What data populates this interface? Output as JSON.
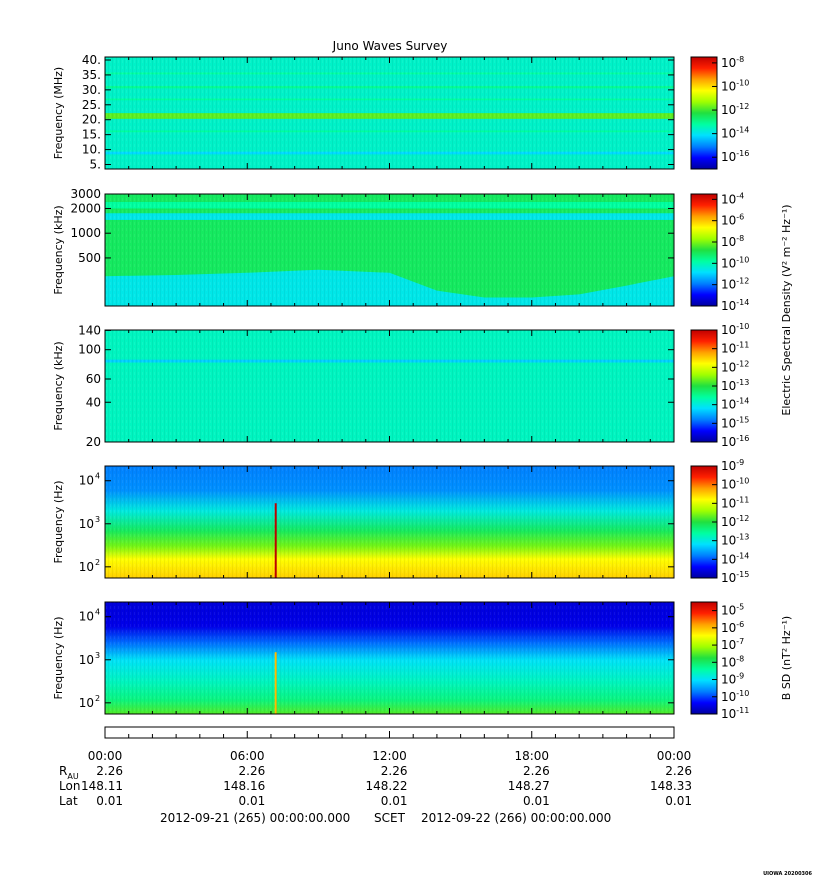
{
  "title": "Juno Waves Survey",
  "credit": "UIOWA 20200306",
  "colorbar_labels": {
    "electric": "Electric Spectral Density (V² m⁻² Hz⁻¹)",
    "magnetic": "B SD (nT² Hz⁻¹)"
  },
  "colors": {
    "background": "#ffffff",
    "colormap": [
      "#0000a0",
      "#0000ff",
      "#0080ff",
      "#00e0ff",
      "#00ffa0",
      "#20e040",
      "#a0ff00",
      "#ffff00",
      "#ffa000",
      "#ff2000",
      "#c00000"
    ]
  },
  "time_axis": {
    "tick_labels": [
      "00:00",
      "06:00",
      "12:00",
      "18:00",
      "00:00"
    ],
    "rows": [
      {
        "label": "R",
        "sub": "AU",
        "values": [
          "2.26",
          "2.26",
          "2.26",
          "2.26",
          "2.26"
        ]
      },
      {
        "label": "Lon",
        "sub": "",
        "values": [
          "148.11",
          "148.16",
          "148.22",
          "148.27",
          "148.33"
        ]
      },
      {
        "label": "Lat",
        "sub": "",
        "values": [
          "0.01",
          "0.01",
          "0.01",
          "0.01",
          "0.01"
        ]
      }
    ],
    "start": "2012-09-21 (265) 00:00:00.000",
    "scet": "SCET",
    "end": "2012-09-22 (266) 00:00:00.000"
  },
  "chart_data": [
    {
      "type": "heatmap",
      "title": "Juno Waves Survey",
      "ylabel": "Frequency (MHz)",
      "yscale": "linear",
      "ylim": [
        3.5,
        41
      ],
      "y_ticks": [
        {
          "v": 5,
          "t": "5."
        },
        {
          "v": 10,
          "t": "10."
        },
        {
          "v": 15,
          "t": "15."
        },
        {
          "v": 20,
          "t": "20."
        },
        {
          "v": 25,
          "t": "25."
        },
        {
          "v": 30,
          "t": "30."
        },
        {
          "v": 35,
          "t": "35."
        },
        {
          "v": 40,
          "t": "40."
        }
      ],
      "x": [
        "00:00",
        "06:00",
        "12:00",
        "18:00",
        "00:00"
      ],
      "colorbar": {
        "min_exp": -17,
        "max_exp": -7.5,
        "ticks": [
          -8,
          -10,
          -12,
          -14,
          -16
        ]
      },
      "features": [
        {
          "kind": "background",
          "y": [
            3.5,
            41
          ],
          "level": -13.6
        },
        {
          "kind": "band",
          "y": [
            20.3,
            22.2
          ],
          "level": -11.8
        },
        {
          "kind": "band",
          "y": [
            8.4,
            9.3
          ],
          "level": -14.2
        },
        {
          "kind": "band",
          "y": [
            30.5,
            31.3
          ],
          "level": -13.1
        },
        {
          "kind": "band",
          "y": [
            26.5,
            27.1
          ],
          "level": -13.2
        },
        {
          "kind": "band",
          "y": [
            35.2,
            35.8
          ],
          "level": -13.2
        },
        {
          "kind": "band",
          "y": [
            15.8,
            16.4
          ],
          "level": -13.2
        }
      ]
    },
    {
      "type": "heatmap",
      "ylabel": "Frequency (kHz)",
      "yscale": "log",
      "ylim": [
        130,
        3000
      ],
      "y_ticks": [
        {
          "v": 500,
          "t": "500"
        },
        {
          "v": 1000,
          "t": "1000"
        },
        {
          "v": 2000,
          "t": "2000"
        },
        {
          "v": 3000,
          "t": "3000"
        }
      ],
      "x": [
        "00:00",
        "06:00",
        "12:00",
        "18:00",
        "00:00"
      ],
      "colorbar": {
        "min_exp": -14,
        "max_exp": -3.5,
        "ticks": [
          -4,
          -6,
          -8,
          -10,
          -12,
          -14
        ]
      },
      "features": [
        {
          "kind": "background",
          "y": [
            130,
            3000
          ],
          "level": -9.1
        },
        {
          "kind": "band",
          "y": [
            1450,
            1750
          ],
          "level": -10.6
        },
        {
          "kind": "band",
          "y": [
            2000,
            2400
          ],
          "level": -9.8
        },
        {
          "kind": "emission",
          "level": -10.6,
          "base": 130,
          "upper_t": [
            0,
            3,
            6,
            9,
            12,
            14,
            16,
            18,
            20,
            22,
            24
          ],
          "upper_f": [
            300,
            310,
            330,
            360,
            330,
            200,
            165,
            165,
            180,
            230,
            300
          ]
        }
      ]
    },
    {
      "type": "heatmap",
      "ylabel": "Frequency (kHz)",
      "yscale": "log",
      "ylim": [
        20,
        141
      ],
      "y_ticks": [
        {
          "v": 20,
          "t": "20"
        },
        {
          "v": 40,
          "t": "40"
        },
        {
          "v": 60,
          "t": "60"
        },
        {
          "v": 100,
          "t": "100"
        },
        {
          "v": 140,
          "t": "140"
        }
      ],
      "x": [
        "00:00",
        "06:00",
        "12:00",
        "18:00",
        "00:00"
      ],
      "colorbar": {
        "min_exp": -16,
        "max_exp": -10,
        "ticks": [
          -10,
          -11,
          -12,
          -13,
          -14,
          -15,
          -16
        ]
      },
      "features": [
        {
          "kind": "background",
          "y": [
            20,
            141
          ],
          "level": -13.8
        },
        {
          "kind": "band",
          "y": [
            80,
            84
          ],
          "level": -14.3
        }
      ]
    },
    {
      "type": "heatmap",
      "ylabel": "Frequency (Hz)",
      "yscale": "log",
      "ylim": [
        55,
        22000
      ],
      "y_ticks": [
        {
          "v": 100,
          "t": "10",
          "e": "2"
        },
        {
          "v": 1000,
          "t": "10",
          "e": "3"
        },
        {
          "v": 10000,
          "t": "10",
          "e": "4"
        }
      ],
      "x": [
        "00:00",
        "06:00",
        "12:00",
        "18:00",
        "00:00"
      ],
      "colorbar": {
        "min_exp": -15,
        "max_exp": -9,
        "ticks": [
          -9,
          -10,
          -11,
          -12,
          -13,
          -14,
          -15
        ]
      },
      "features": [
        {
          "kind": "gradient",
          "stops": [
            [
              55,
              -10.5
            ],
            [
              150,
              -10.8
            ],
            [
              300,
              -11.6
            ],
            [
              700,
              -12.2
            ],
            [
              2000,
              -13.0
            ],
            [
              6000,
              -13.7
            ],
            [
              22000,
              -13.8
            ]
          ]
        },
        {
          "kind": "spike",
          "t": 7.2,
          "y": [
            55,
            3000
          ],
          "level": -8.8
        }
      ]
    },
    {
      "type": "heatmap",
      "ylabel": "Frequency (Hz)",
      "yscale": "log",
      "ylim": [
        55,
        22000
      ],
      "y_ticks": [
        {
          "v": 100,
          "t": "10",
          "e": "2"
        },
        {
          "v": 1000,
          "t": "10",
          "e": "3"
        },
        {
          "v": 10000,
          "t": "10",
          "e": "4"
        }
      ],
      "x": [
        "00:00",
        "06:00",
        "12:00",
        "18:00",
        "00:00"
      ],
      "colorbar": {
        "min_exp": -11,
        "max_exp": -4.5,
        "ticks": [
          -5,
          -6,
          -7,
          -8,
          -9,
          -10,
          -11
        ]
      },
      "features": [
        {
          "kind": "gradient",
          "stops": [
            [
              55,
              -7.5
            ],
            [
              120,
              -8.2
            ],
            [
              300,
              -8.6
            ],
            [
              1000,
              -9.0
            ],
            [
              2500,
              -9.8
            ],
            [
              6000,
              -10.5
            ],
            [
              22000,
              -10.6
            ]
          ]
        },
        {
          "kind": "spike",
          "t": 7.2,
          "y": [
            55,
            1500
          ],
          "level": -6.0
        }
      ]
    }
  ]
}
